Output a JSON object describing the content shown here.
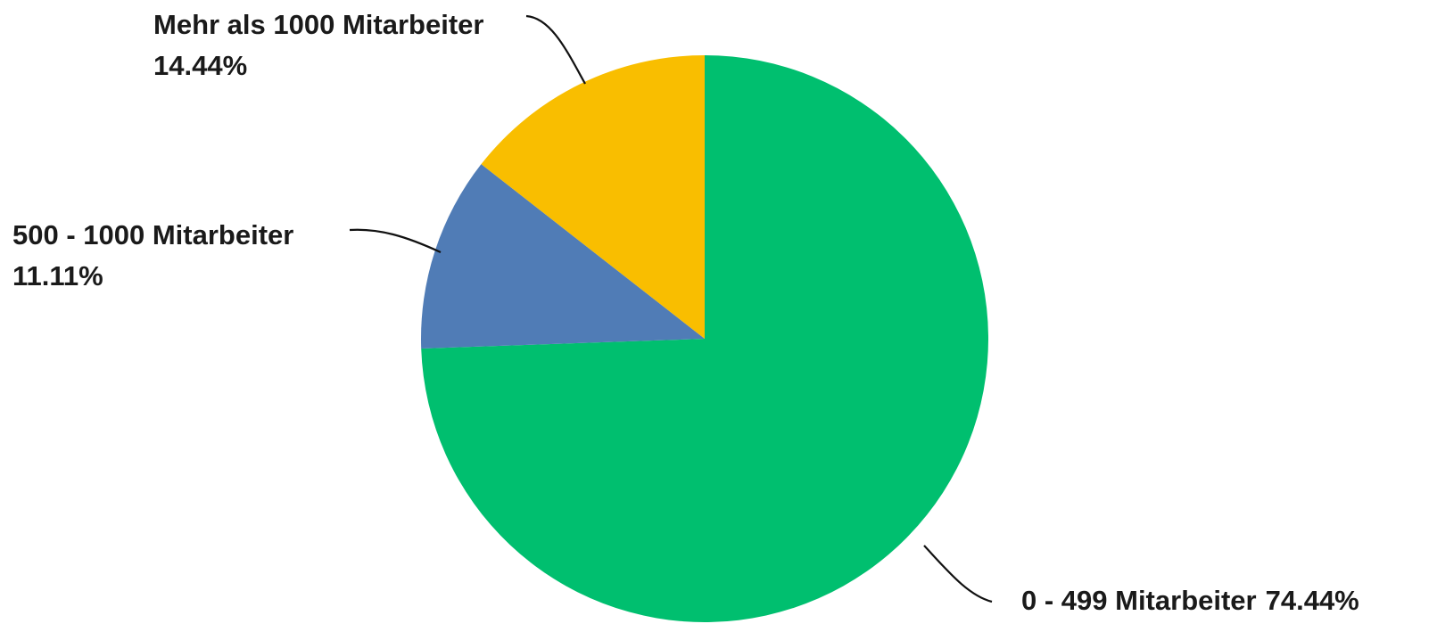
{
  "chart_data": {
    "type": "pie",
    "title": "",
    "slices": [
      {
        "label": "0 - 499 Mitarbeiter",
        "value_text": "74.44%",
        "value": 74.44,
        "color": "#00BF6F"
      },
      {
        "label": "500 - 1000 Mitarbeiter",
        "value_text": "11.11%",
        "value": 11.11,
        "color": "#507CB6"
      },
      {
        "label": "Mehr als 1000 Mitarbeiter",
        "value_text": "14.44%",
        "value": 14.44,
        "color": "#F9BE00"
      }
    ]
  }
}
